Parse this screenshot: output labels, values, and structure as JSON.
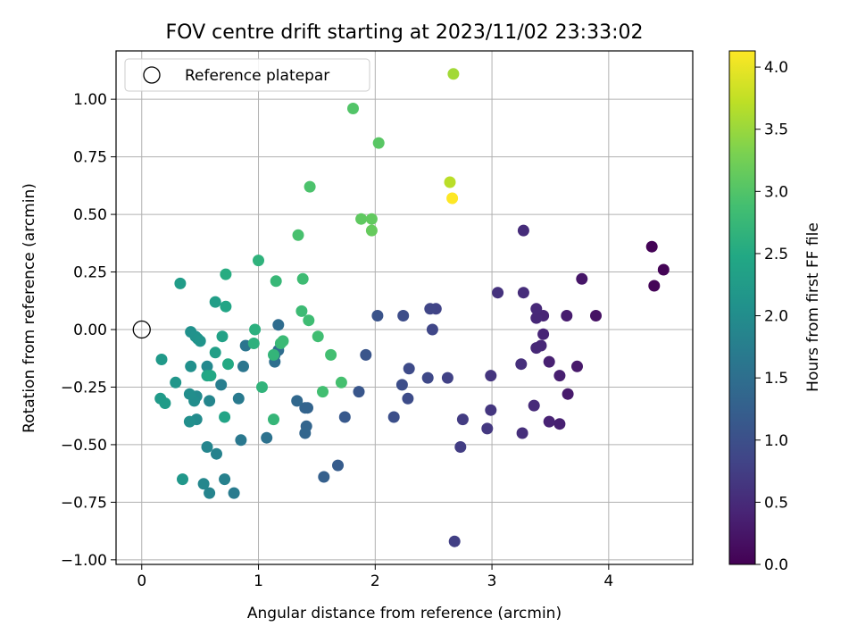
{
  "chart_data": {
    "type": "scatter",
    "title": "FOV centre drift starting at 2023/11/02 23:33:02",
    "xlabel": "Angular distance from reference (arcmin)",
    "ylabel": "Rotation from reference (arcmin)",
    "xlim": [
      -0.22,
      4.72
    ],
    "ylim": [
      -1.02,
      1.21
    ],
    "xticks": [
      0,
      1,
      2,
      3,
      4
    ],
    "xtick_labels": [
      "0",
      "1",
      "2",
      "3",
      "4"
    ],
    "yticks": [
      -1.0,
      -0.75,
      -0.5,
      -0.25,
      0.0,
      0.25,
      0.5,
      0.75,
      1.0
    ],
    "ytick_labels": [
      "−1.00",
      "−0.75",
      "−0.50",
      "−0.25",
      "0.00",
      "0.25",
      "0.50",
      "0.75",
      "1.00"
    ],
    "grid": true,
    "legend": {
      "position": "top-left",
      "entries": [
        {
          "label": "Reference platepar",
          "marker": "open-circle",
          "x": 0,
          "y": 0
        }
      ]
    },
    "colorbar": {
      "label": "Hours from first FF file",
      "colormap": "viridis",
      "range": [
        0,
        4.13
      ],
      "ticks": [
        0.0,
        0.5,
        1.0,
        1.5,
        2.0,
        2.5,
        3.0,
        3.5,
        4.0
      ],
      "tick_labels": [
        "0.0",
        "0.5",
        "1.0",
        "1.5",
        "2.0",
        "2.5",
        "3.0",
        "3.5",
        "4.0"
      ]
    },
    "points": [
      {
        "x": 4.37,
        "y": 0.36,
        "c": 0.02
      },
      {
        "x": 4.47,
        "y": 0.26,
        "c": 0.03
      },
      {
        "x": 4.39,
        "y": 0.19,
        "c": 0.04
      },
      {
        "x": 3.89,
        "y": 0.06,
        "c": 0.2
      },
      {
        "x": 3.77,
        "y": 0.22,
        "c": 0.25
      },
      {
        "x": 3.73,
        "y": -0.16,
        "c": 0.28
      },
      {
        "x": 3.65,
        "y": -0.28,
        "c": 0.3
      },
      {
        "x": 3.64,
        "y": 0.06,
        "c": 0.32
      },
      {
        "x": 3.58,
        "y": -0.2,
        "c": 0.35
      },
      {
        "x": 3.58,
        "y": -0.41,
        "c": 0.36
      },
      {
        "x": 3.49,
        "y": -0.14,
        "c": 0.38
      },
      {
        "x": 3.49,
        "y": -0.4,
        "c": 0.4
      },
      {
        "x": 3.44,
        "y": 0.06,
        "c": 0.42
      },
      {
        "x": 3.44,
        "y": -0.02,
        "c": 0.43
      },
      {
        "x": 3.42,
        "y": -0.07,
        "c": 0.45
      },
      {
        "x": 3.38,
        "y": -0.08,
        "c": 0.46
      },
      {
        "x": 3.38,
        "y": 0.05,
        "c": 0.47
      },
      {
        "x": 3.38,
        "y": 0.09,
        "c": 0.48
      },
      {
        "x": 3.36,
        "y": -0.33,
        "c": 0.5
      },
      {
        "x": 3.27,
        "y": 0.43,
        "c": 0.52
      },
      {
        "x": 3.27,
        "y": 0.16,
        "c": 0.53
      },
      {
        "x": 3.25,
        "y": -0.15,
        "c": 0.55
      },
      {
        "x": 3.26,
        "y": -0.45,
        "c": 0.56
      },
      {
        "x": 3.05,
        "y": 0.16,
        "c": 0.6
      },
      {
        "x": 2.99,
        "y": -0.2,
        "c": 0.63
      },
      {
        "x": 2.99,
        "y": -0.35,
        "c": 0.65
      },
      {
        "x": 2.96,
        "y": -0.43,
        "c": 0.67
      },
      {
        "x": 2.75,
        "y": -0.39,
        "c": 0.72
      },
      {
        "x": 2.73,
        "y": -0.51,
        "c": 0.74
      },
      {
        "x": 2.68,
        "y": -0.92,
        "c": 0.78
      },
      {
        "x": 2.62,
        "y": -0.21,
        "c": 0.8
      },
      {
        "x": 2.52,
        "y": 0.09,
        "c": 0.83
      },
      {
        "x": 2.47,
        "y": 0.09,
        "c": 0.85
      },
      {
        "x": 2.49,
        "y": 0.0,
        "c": 0.87
      },
      {
        "x": 2.45,
        "y": -0.21,
        "c": 0.9
      },
      {
        "x": 2.29,
        "y": -0.17,
        "c": 0.93
      },
      {
        "x": 2.28,
        "y": -0.3,
        "c": 0.95
      },
      {
        "x": 2.24,
        "y": 0.06,
        "c": 0.97
      },
      {
        "x": 2.23,
        "y": -0.24,
        "c": 0.98
      },
      {
        "x": 2.16,
        "y": -0.38,
        "c": 1.0
      },
      {
        "x": 2.02,
        "y": 0.06,
        "c": 1.05
      },
      {
        "x": 1.92,
        "y": -0.11,
        "c": 1.08
      },
      {
        "x": 1.86,
        "y": -0.27,
        "c": 1.1
      },
      {
        "x": 1.74,
        "y": -0.38,
        "c": 1.15
      },
      {
        "x": 1.68,
        "y": -0.59,
        "c": 1.2
      },
      {
        "x": 1.56,
        "y": -0.64,
        "c": 1.25
      },
      {
        "x": 1.42,
        "y": -0.34,
        "c": 1.3
      },
      {
        "x": 1.4,
        "y": -0.34,
        "c": 1.32
      },
      {
        "x": 1.41,
        "y": -0.42,
        "c": 1.33
      },
      {
        "x": 1.4,
        "y": -0.45,
        "c": 1.35
      },
      {
        "x": 1.33,
        "y": -0.31,
        "c": 1.38
      },
      {
        "x": 1.17,
        "y": 0.02,
        "c": 1.45
      },
      {
        "x": 1.17,
        "y": -0.09,
        "c": 1.47
      },
      {
        "x": 1.14,
        "y": -0.14,
        "c": 1.5
      },
      {
        "x": 1.14,
        "y": -0.11,
        "c": 1.52
      },
      {
        "x": 1.07,
        "y": -0.47,
        "c": 1.55
      },
      {
        "x": 0.89,
        "y": -0.07,
        "c": 1.6
      },
      {
        "x": 0.87,
        "y": -0.16,
        "c": 1.62
      },
      {
        "x": 0.85,
        "y": -0.48,
        "c": 1.65
      },
      {
        "x": 0.83,
        "y": -0.3,
        "c": 1.68
      },
      {
        "x": 0.79,
        "y": -0.71,
        "c": 1.7
      },
      {
        "x": 0.68,
        "y": -0.24,
        "c": 1.75
      },
      {
        "x": 0.71,
        "y": -0.65,
        "c": 1.8
      },
      {
        "x": 0.64,
        "y": -0.54,
        "c": 1.82
      },
      {
        "x": 0.58,
        "y": -0.71,
        "c": 1.85
      },
      {
        "x": 0.56,
        "y": -0.51,
        "c": 1.87
      },
      {
        "x": 0.58,
        "y": -0.31,
        "c": 1.88
      },
      {
        "x": 0.53,
        "y": -0.67,
        "c": 1.9
      },
      {
        "x": 0.56,
        "y": -0.16,
        "c": 1.92
      },
      {
        "x": 0.47,
        "y": -0.29,
        "c": 1.95
      },
      {
        "x": 0.47,
        "y": -0.39,
        "c": 1.97
      },
      {
        "x": 0.45,
        "y": -0.31,
        "c": 2.0
      },
      {
        "x": 0.41,
        "y": -0.28,
        "c": 2.02
      },
      {
        "x": 0.41,
        "y": -0.4,
        "c": 2.03
      },
      {
        "x": 0.42,
        "y": -0.16,
        "c": 2.05
      },
      {
        "x": 0.42,
        "y": -0.01,
        "c": 2.07
      },
      {
        "x": 0.46,
        "y": -0.03,
        "c": 2.08
      },
      {
        "x": 0.48,
        "y": -0.04,
        "c": 2.1
      },
      {
        "x": 0.5,
        "y": -0.05,
        "c": 2.12
      },
      {
        "x": 0.29,
        "y": -0.23,
        "c": 2.15
      },
      {
        "x": 0.35,
        "y": -0.65,
        "c": 2.17
      },
      {
        "x": 0.17,
        "y": -0.13,
        "c": 2.2
      },
      {
        "x": 0.16,
        "y": -0.3,
        "c": 2.22
      },
      {
        "x": 0.2,
        "y": -0.32,
        "c": 2.25
      },
      {
        "x": 0.33,
        "y": 0.2,
        "c": 2.27
      },
      {
        "x": 0.63,
        "y": 0.12,
        "c": 2.3
      },
      {
        "x": 0.63,
        "y": -0.1,
        "c": 2.32
      },
      {
        "x": 0.69,
        "y": -0.03,
        "c": 2.35
      },
      {
        "x": 0.71,
        "y": -0.38,
        "c": 2.4
      },
      {
        "x": 0.72,
        "y": 0.1,
        "c": 2.42
      },
      {
        "x": 0.56,
        "y": -0.2,
        "c": 2.45
      },
      {
        "x": 0.59,
        "y": -0.2,
        "c": 2.47
      },
      {
        "x": 0.74,
        "y": -0.15,
        "c": 2.5
      },
      {
        "x": 0.72,
        "y": 0.24,
        "c": 2.55
      },
      {
        "x": 0.97,
        "y": 0.0,
        "c": 2.6
      },
      {
        "x": 0.96,
        "y": -0.06,
        "c": 2.62
      },
      {
        "x": 1.0,
        "y": 0.3,
        "c": 2.65
      },
      {
        "x": 1.03,
        "y": -0.25,
        "c": 2.67
      },
      {
        "x": 1.13,
        "y": -0.11,
        "c": 2.7
      },
      {
        "x": 1.13,
        "y": -0.39,
        "c": 2.72
      },
      {
        "x": 1.15,
        "y": 0.21,
        "c": 2.75
      },
      {
        "x": 1.19,
        "y": -0.06,
        "c": 2.77
      },
      {
        "x": 1.21,
        "y": -0.05,
        "c": 2.78
      },
      {
        "x": 1.37,
        "y": 0.08,
        "c": 2.8
      },
      {
        "x": 1.38,
        "y": 0.22,
        "c": 2.82
      },
      {
        "x": 1.43,
        "y": 0.04,
        "c": 2.83
      },
      {
        "x": 1.51,
        "y": -0.03,
        "c": 2.85
      },
      {
        "x": 1.55,
        "y": -0.27,
        "c": 2.87
      },
      {
        "x": 1.62,
        "y": -0.11,
        "c": 2.88
      },
      {
        "x": 1.71,
        "y": -0.23,
        "c": 2.9
      },
      {
        "x": 1.34,
        "y": 0.41,
        "c": 2.92
      },
      {
        "x": 1.44,
        "y": 0.62,
        "c": 2.95
      },
      {
        "x": 1.81,
        "y": 0.96,
        "c": 3.0
      },
      {
        "x": 2.03,
        "y": 0.81,
        "c": 3.05
      },
      {
        "x": 1.88,
        "y": 0.48,
        "c": 3.1
      },
      {
        "x": 1.97,
        "y": 0.48,
        "c": 3.12
      },
      {
        "x": 1.97,
        "y": 0.43,
        "c": 3.15
      },
      {
        "x": 2.67,
        "y": 1.11,
        "c": 3.55
      },
      {
        "x": 2.64,
        "y": 0.64,
        "c": 3.7
      },
      {
        "x": 2.66,
        "y": 0.57,
        "c": 4.13
      }
    ]
  }
}
